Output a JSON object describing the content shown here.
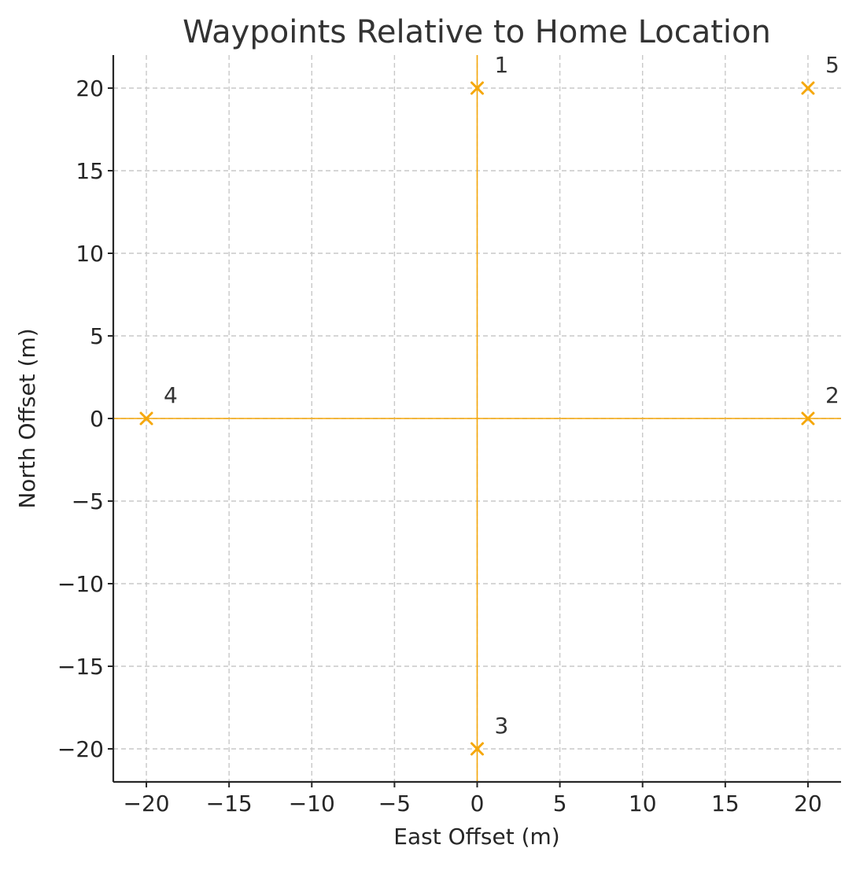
{
  "chart_data": {
    "type": "scatter",
    "title": "Waypoints Relative to Home Location",
    "xlabel": "East Offset (m)",
    "ylabel": "North Offset (m)",
    "xlim": [
      -22,
      22
    ],
    "ylim": [
      -22,
      22
    ],
    "xticks": [
      -20,
      -15,
      -10,
      -5,
      0,
      5,
      10,
      15,
      20
    ],
    "yticks": [
      -20,
      -15,
      -10,
      -5,
      0,
      5,
      10,
      15,
      20
    ],
    "xtick_labels": [
      "−20",
      "−15",
      "−10",
      "−5",
      "0",
      "5",
      "10",
      "15",
      "20"
    ],
    "ytick_labels": [
      "−20",
      "−15",
      "−10",
      "−5",
      "0",
      "5",
      "10",
      "15",
      "20"
    ],
    "grid": true,
    "reference_lines": {
      "x": 0,
      "y": 0
    },
    "color": "#f5a70a",
    "marker": "x",
    "points": [
      {
        "label": "1",
        "x": 0,
        "y": 20
      },
      {
        "label": "2",
        "x": 20,
        "y": 0
      },
      {
        "label": "3",
        "x": 0,
        "y": -20
      },
      {
        "label": "4",
        "x": -20,
        "y": 0
      },
      {
        "label": "5",
        "x": 20,
        "y": 20
      }
    ]
  }
}
